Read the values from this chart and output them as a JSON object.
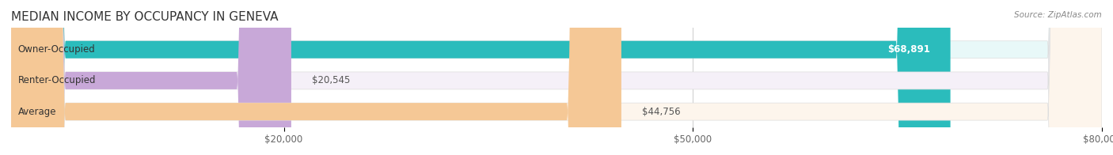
{
  "title": "MEDIAN INCOME BY OCCUPANCY IN GENEVA",
  "source": "Source: ZipAtlas.com",
  "categories": [
    "Owner-Occupied",
    "Renter-Occupied",
    "Average"
  ],
  "values": [
    68891,
    20545,
    44756
  ],
  "bar_colors": [
    "#2bbcbc",
    "#c8a8d8",
    "#f5c896"
  ],
  "bar_bg_colors": [
    "#e8f8f8",
    "#f5f0f8",
    "#fdf5ec"
  ],
  "value_labels": [
    "$68,891",
    "$20,545",
    "$44,756"
  ],
  "xlim": [
    0,
    80000
  ],
  "xticks": [
    20000,
    50000,
    80000
  ],
  "xtick_labels": [
    "$20,000",
    "$50,000",
    "$80,000"
  ],
  "title_fontsize": 11,
  "label_fontsize": 8.5,
  "bar_height": 0.55,
  "background_color": "#ffffff",
  "bar_label_color": "#555555",
  "bar_bg_border_color": "#dddddd"
}
